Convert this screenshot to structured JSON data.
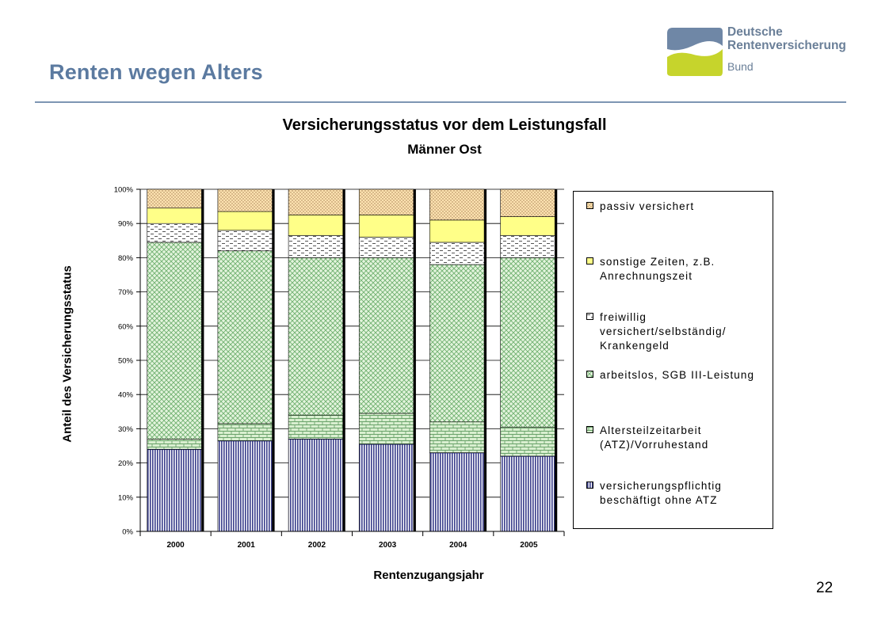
{
  "slide": {
    "title": "Renten wegen Alters",
    "page_number": "22"
  },
  "logo": {
    "line1": "Deutsche",
    "line2": "Rentenversicherung",
    "line3": "Bund",
    "colors": {
      "top": "#6f87a6",
      "bottom": "#c6d42c"
    }
  },
  "chart_data": {
    "type": "bar",
    "stacked": true,
    "title": "Versicherungsstatus vor dem Leistungsfall",
    "subtitle": "Männer Ost",
    "xlabel": "Rentenzugangsjahr",
    "ylabel": "Anteil des Versicherungsstatus",
    "categories": [
      "2000",
      "2001",
      "2002",
      "2003",
      "2004",
      "2005"
    ],
    "ylim": [
      0,
      100
    ],
    "yticks": [
      "0%",
      "10%",
      "20%",
      "30%",
      "40%",
      "50%",
      "60%",
      "70%",
      "80%",
      "90%",
      "100%"
    ],
    "grid": true,
    "legend_position": "right",
    "series": [
      {
        "name": "versicherungspflichtig\nbeschäftigt ohne ATZ",
        "pattern": "vertical-stripes",
        "color": "#3b3f8c",
        "values": [
          24,
          26.5,
          27,
          25.5,
          23,
          22
        ]
      },
      {
        "name": "Altersteilzeitarbeit\n(ATZ)/Vorruhestand",
        "pattern": "bricks",
        "color": "#7fbf7f",
        "values": [
          3,
          5,
          7,
          9,
          9,
          8.5
        ]
      },
      {
        "name": "arbeitslos, SGB III-Leistung",
        "pattern": "crosshatch",
        "color": "#7fbf7f",
        "values": [
          57.5,
          50.5,
          46,
          45.5,
          46,
          49.5
        ]
      },
      {
        "name": "freiwillig\nversichert/selbständig/\nKrankengeld",
        "pattern": "dashes",
        "color": "#555555",
        "values": [
          5.5,
          6,
          6.5,
          6,
          6.5,
          6.5
        ]
      },
      {
        "name": "sonstige Zeiten, z.B.\nAnrechnungszeit",
        "pattern": "solid",
        "color": "#ffff88",
        "values": [
          4.5,
          5.5,
          6,
          6.5,
          6.5,
          5.5
        ]
      },
      {
        "name": "passiv versichert",
        "pattern": "dots",
        "color": "#fde2b0",
        "values": [
          5.5,
          6.5,
          7.5,
          7.5,
          9,
          8
        ]
      }
    ]
  }
}
